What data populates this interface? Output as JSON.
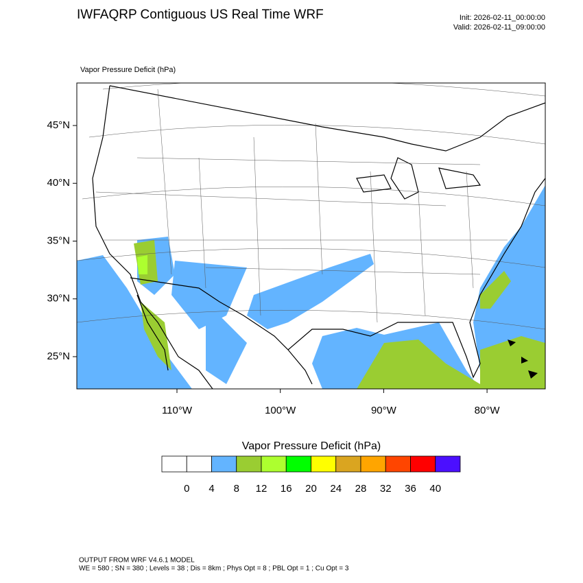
{
  "header": {
    "title": "IWFAQRP Contiguous US Real Time WRF",
    "init": "Init: 2026-02-11_00:00:00",
    "valid": "Valid: 2026-02-11_09:00:00"
  },
  "map": {
    "variable_label": "Vapor Pressure Deficit   (hPa)",
    "lat_ticks": [
      {
        "value": 45,
        "label": "45°N"
      },
      {
        "value": 40,
        "label": "40°N"
      },
      {
        "value": 35,
        "label": "35°N"
      },
      {
        "value": 30,
        "label": "30°N"
      },
      {
        "value": 25,
        "label": "25°N"
      }
    ],
    "lon_ticks": [
      {
        "value": -110,
        "label": "110°W"
      },
      {
        "value": -100,
        "label": "100°W"
      },
      {
        "value": -90,
        "label": "90°W"
      },
      {
        "value": -80,
        "label": "80°W"
      }
    ]
  },
  "colorbar": {
    "title": "Vapor Pressure Deficit  (hPa)",
    "levels": [
      0,
      4,
      8,
      12,
      16,
      20,
      24,
      28,
      32,
      36,
      40
    ],
    "colors": [
      "#ffffff",
      "#ffffff",
      "#63b4ff",
      "#9acd32",
      "#adff2f",
      "#00ff00",
      "#ffff00",
      "#daa520",
      "#ffa500",
      "#ff4500",
      "#ff0000",
      "#4b0fff"
    ]
  },
  "footer": {
    "lines": [
      "OUTPUT FROM WRF V4.6.1 MODEL",
      "WE = 580 ; SN = 380 ; Levels = 38 ; Dis = 8km ; Phys Opt = 8 ; PBL Opt = 1 ; Cu Opt = 3"
    ]
  }
}
